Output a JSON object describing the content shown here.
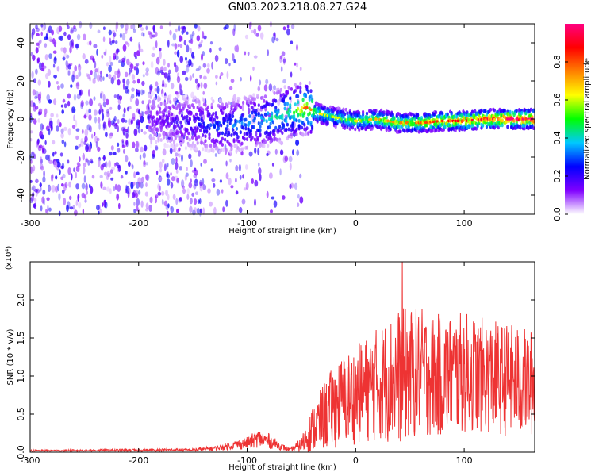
{
  "title": "GN03.2023.218.08.27.G24",
  "chart_data": [
    {
      "type": "heatmap",
      "name": "spectrogram",
      "xlabel": "Height of straight line (km)",
      "ylabel": "Frequency (Hz)",
      "xlim": [
        -300,
        165
      ],
      "ylim": [
        -50,
        50
      ],
      "x_ticks": [
        -300,
        -200,
        -100,
        0,
        100
      ],
      "y_ticks": [
        -40,
        -20,
        0,
        20,
        40
      ],
      "colorbar": {
        "label": "Normalized spectral amplitude",
        "range": [
          0.0,
          1.0
        ],
        "ticks": [
          "0.0",
          "0.2",
          "0.4",
          "0.6",
          "0.8"
        ],
        "colormap": [
          "#ffffff",
          "#8000ff",
          "#0000ff",
          "#00c8ff",
          "#00ff00",
          "#ffff00",
          "#ff8000",
          "#ff0000",
          "#ff0080"
        ]
      },
      "ridge": {
        "x": [
          -190,
          -150,
          -120,
          -100,
          -80,
          -60,
          -45,
          -35,
          -20,
          0,
          20,
          40,
          60,
          80,
          100,
          120,
          140,
          165
        ],
        "y": [
          0,
          -2,
          -4,
          -2,
          0,
          4,
          6,
          3,
          1,
          -1,
          0,
          -2,
          -2,
          -1,
          -1,
          0,
          0,
          0
        ],
        "peak_amplitude": [
          0.15,
          0.25,
          0.35,
          0.4,
          0.45,
          0.55,
          0.75,
          0.6,
          0.55,
          0.6,
          0.65,
          0.7,
          0.75,
          0.8,
          0.85,
          0.9,
          0.95,
          0.95
        ]
      },
      "noise_region_x": [
        -300,
        -50
      ]
    },
    {
      "type": "line",
      "name": "snr",
      "xlabel": "Height of straight line (km)",
      "ylabel": "SNR (10 * v/v)",
      "multiplier": "(x10⁴)",
      "xlim": [
        -300,
        165
      ],
      "ylim": [
        0,
        2.5
      ],
      "x_ticks": [
        -300,
        -200,
        -100,
        0,
        100
      ],
      "y_ticks": [
        "0.0",
        "0.5",
        "1.0",
        "1.5",
        "2.0"
      ],
      "color": "#ee3333",
      "envelope": {
        "x": [
          -300,
          -150,
          -130,
          -110,
          -100,
          -90,
          -80,
          -70,
          -60,
          -50,
          -40,
          -30,
          -20,
          -10,
          0,
          20,
          40,
          60,
          80,
          100,
          120,
          140,
          165
        ],
        "y_mean": [
          0.02,
          0.03,
          0.05,
          0.1,
          0.12,
          0.18,
          0.15,
          0.08,
          0.03,
          0.1,
          0.3,
          0.45,
          0.6,
          0.7,
          0.75,
          0.9,
          1.0,
          1.05,
          1.0,
          1.05,
          1.0,
          0.95,
          0.9
        ],
        "y_spread": [
          0.01,
          0.02,
          0.03,
          0.06,
          0.08,
          0.12,
          0.1,
          0.05,
          0.02,
          0.1,
          0.3,
          0.45,
          0.55,
          0.6,
          0.65,
          0.75,
          0.9,
          0.85,
          0.8,
          0.8,
          0.75,
          0.75,
          0.7
        ]
      },
      "max_value": 2.5,
      "max_at_x": 43
    }
  ]
}
